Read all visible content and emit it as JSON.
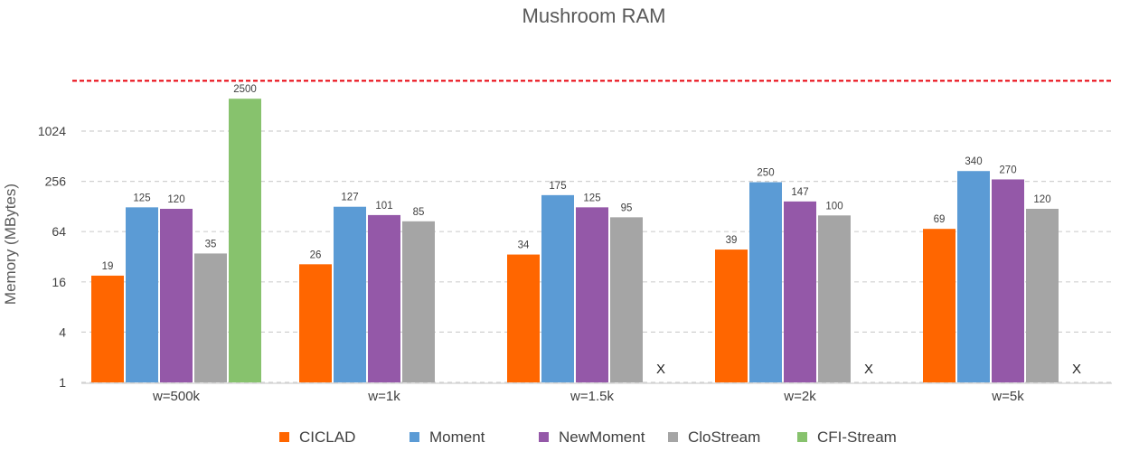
{
  "chart_data": {
    "type": "bar",
    "title": "Mushroom RAM",
    "ylabel": "Memory (MBytes)",
    "xlabel": "",
    "yscale": "log2",
    "yticks": [
      1,
      4,
      16,
      64,
      256,
      1024
    ],
    "ylim": [
      1,
      4096
    ],
    "grid": "horizontal-dashed",
    "legend_position": "bottom",
    "reference_line": {
      "value": 4096,
      "color": "#e8000b",
      "style": "dashed"
    },
    "categories": [
      "w=500k",
      "w=1k",
      "w=1.5k",
      "w=2k",
      "w=5k"
    ],
    "series": [
      {
        "name": "CICLAD",
        "color": "#ff6600",
        "values": [
          19,
          26,
          34,
          39,
          69
        ]
      },
      {
        "name": "Moment",
        "color": "#5b9bd5",
        "values": [
          125,
          127,
          175,
          250,
          340
        ]
      },
      {
        "name": "NewMoment",
        "color": "#9458a8",
        "values": [
          120,
          101,
          125,
          147,
          270
        ]
      },
      {
        "name": "CloStream",
        "color": "#a5a5a5",
        "values": [
          35,
          85,
          95,
          100,
          120
        ]
      },
      {
        "name": "CFI-Stream",
        "color": "#87c26d",
        "values": [
          2500,
          null,
          null,
          null,
          null
        ]
      }
    ],
    "missing_marker": "X",
    "missing_marker_cells": [
      {
        "series": "CFI-Stream",
        "category": "w=1.5k"
      },
      {
        "series": "CFI-Stream",
        "category": "w=2k"
      },
      {
        "series": "CFI-Stream",
        "category": "w=5k"
      }
    ]
  }
}
